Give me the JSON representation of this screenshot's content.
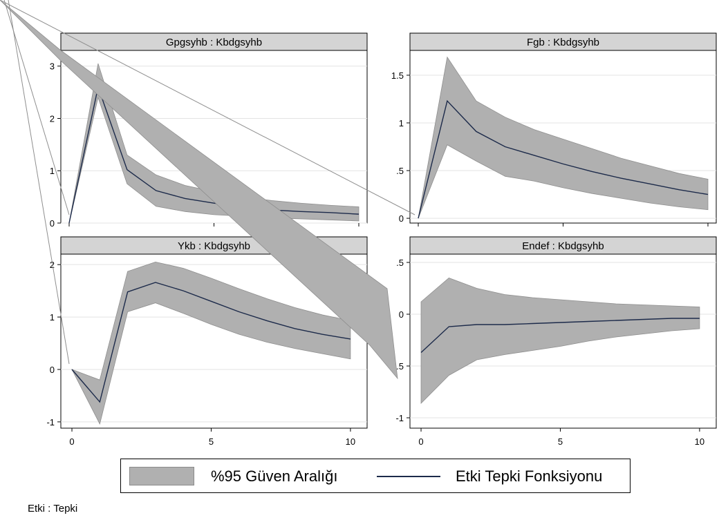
{
  "chart_data": [
    {
      "type": "line",
      "title": "Gpgsyhb : Kbdgsyhb",
      "x": [
        0,
        1,
        2,
        3,
        4,
        5,
        6,
        7,
        8,
        9,
        10
      ],
      "series": [
        {
          "name": "Etki Tepki Fonksiyonu",
          "values": [
            0,
            2.6,
            1.02,
            0.62,
            0.47,
            0.38,
            0.3,
            0.25,
            0.22,
            0.2,
            0.17
          ]
        },
        {
          "name": "%95 Güven Aralığı",
          "lower": [
            0,
            2.4,
            0.75,
            0.32,
            0.22,
            0.16,
            0.13,
            0.1,
            0.08,
            0.06,
            0.04
          ],
          "upper": [
            0,
            3.05,
            1.3,
            0.92,
            0.72,
            0.6,
            0.5,
            0.43,
            0.38,
            0.34,
            0.31
          ]
        }
      ],
      "xlim": [
        0,
        10
      ],
      "ylim": [
        0,
        3.3
      ],
      "yticks": [
        0,
        1,
        2,
        3
      ],
      "ytick_labels": [
        "0",
        "1",
        "2",
        "3"
      ],
      "xticks": [
        0,
        5,
        10
      ],
      "xtick_labels": [
        "",
        "",
        ""
      ]
    },
    {
      "type": "line",
      "title": "Fgb : Kbdgsyhb",
      "x": [
        0,
        1,
        2,
        3,
        4,
        5,
        6,
        7,
        8,
        9,
        10
      ],
      "series": [
        {
          "name": "Etki Tepki Fonksiyonu",
          "values": [
            0,
            1.23,
            0.91,
            0.75,
            0.66,
            0.57,
            0.49,
            0.42,
            0.36,
            0.3,
            0.25
          ]
        },
        {
          "name": "%95 Güven Aralığı",
          "lower": [
            0,
            0.77,
            0.6,
            0.44,
            0.39,
            0.32,
            0.26,
            0.21,
            0.16,
            0.12,
            0.09
          ],
          "upper": [
            0,
            1.69,
            1.23,
            1.06,
            0.93,
            0.83,
            0.73,
            0.63,
            0.55,
            0.47,
            0.41
          ]
        }
      ],
      "xlim": [
        0,
        10
      ],
      "ylim": [
        -0.05,
        1.76
      ],
      "yticks": [
        0,
        0.5,
        1,
        1.5
      ],
      "ytick_labels": [
        "0",
        ".5",
        "1",
        "1.5"
      ],
      "xticks": [
        0,
        5,
        10
      ],
      "xtick_labels": [
        "",
        "",
        ""
      ]
    },
    {
      "type": "line",
      "title": "Ykb : Kbdgsyhb",
      "x": [
        0,
        1,
        2,
        3,
        4,
        5,
        6,
        7,
        8,
        9,
        10
      ],
      "series": [
        {
          "name": "Etki Tepki Fonksiyonu",
          "values": [
            0,
            -0.62,
            1.48,
            1.66,
            1.5,
            1.3,
            1.1,
            0.93,
            0.78,
            0.67,
            0.58
          ]
        },
        {
          "name": "%95 Güven Aralığı",
          "lower": [
            0,
            -1.04,
            1.1,
            1.27,
            1.07,
            0.86,
            0.67,
            0.52,
            0.4,
            0.3,
            0.2
          ],
          "upper": [
            0,
            -0.2,
            1.87,
            2.05,
            1.93,
            1.74,
            1.54,
            1.35,
            1.18,
            1.04,
            0.93
          ]
        }
      ],
      "xlim": [
        -0.1,
        10.3
      ],
      "ylim": [
        -1.12,
        2.2
      ],
      "yticks": [
        -1,
        0,
        1,
        2
      ],
      "ytick_labels": [
        "-1",
        "0",
        "1",
        "2"
      ],
      "xticks": [
        0,
        5,
        10
      ],
      "xtick_labels": [
        "0",
        "5",
        "10"
      ]
    },
    {
      "type": "line",
      "title": "Endef : Kbdgsyhb",
      "x": [
        0,
        1,
        2,
        3,
        4,
        5,
        6,
        7,
        8,
        9,
        10
      ],
      "series": [
        {
          "name": "Etki Tepki Fonksiyonu",
          "values": [
            -0.37,
            -0.12,
            -0.1,
            -0.1,
            -0.09,
            -0.08,
            -0.07,
            -0.06,
            -0.05,
            -0.04,
            -0.04
          ]
        },
        {
          "name": "%95 Güven Aralığı",
          "lower": [
            -0.86,
            -0.59,
            -0.44,
            -0.39,
            -0.35,
            -0.31,
            -0.26,
            -0.22,
            -0.19,
            -0.16,
            -0.14
          ],
          "upper": [
            0.12,
            0.35,
            0.25,
            0.19,
            0.16,
            0.14,
            0.12,
            0.1,
            0.09,
            0.08,
            0.07
          ]
        }
      ],
      "xlim": [
        -0.1,
        10.3
      ],
      "ylim": [
        -1.1,
        0.58
      ],
      "yticks": [
        -1,
        -0.5,
        0,
        0.5
      ],
      "ytick_labels": [
        "-1",
        "-.5",
        "0",
        ".5"
      ],
      "xticks": [
        0,
        5,
        10
      ],
      "xtick_labels": [
        "0",
        "5",
        "10"
      ]
    }
  ],
  "legend": {
    "band_label": "%95 Güven Aralığı",
    "line_label": "Etki Tepki Fonksiyonu",
    "band_color": "#b0b0b0",
    "line_color": "#1c2a4a"
  },
  "note": "Etki : Tepki",
  "colors": {
    "band": "#b0b0b0",
    "band_edge": "#8e8e8e",
    "line": "#1c2a4a",
    "title_bar": "#d4d4d4",
    "grid": "#e3e3e3"
  }
}
